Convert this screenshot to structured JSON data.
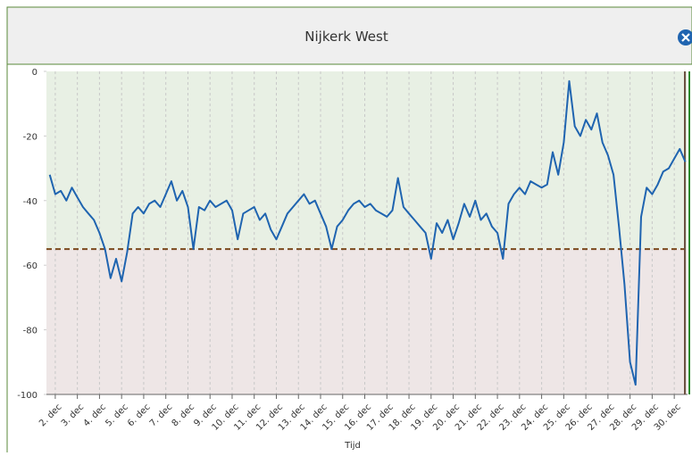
{
  "chart_data": {
    "type": "line",
    "title": "Nijkerk West",
    "x_label": "Tijd",
    "x": [
      1.75,
      2,
      2.25,
      2.5,
      2.75,
      3,
      3.25,
      3.5,
      3.75,
      4,
      4.25,
      4.5,
      4.75,
      5,
      5.25,
      5.5,
      5.75,
      6,
      6.25,
      6.5,
      6.75,
      7,
      7.25,
      7.5,
      7.75,
      8,
      8.25,
      8.5,
      8.75,
      9,
      9.25,
      9.5,
      9.75,
      10,
      10.25,
      10.5,
      10.75,
      11,
      11.25,
      11.5,
      11.75,
      12,
      12.25,
      12.5,
      12.75,
      13,
      13.25,
      13.5,
      13.75,
      14,
      14.25,
      14.5,
      14.75,
      15,
      15.25,
      15.5,
      15.75,
      16,
      16.25,
      16.5,
      16.75,
      17,
      17.25,
      17.5,
      17.75,
      18,
      18.25,
      18.5,
      18.75,
      19,
      19.25,
      19.5,
      19.75,
      20,
      20.25,
      20.5,
      20.75,
      21,
      21.25,
      21.5,
      21.75,
      22,
      22.25,
      22.5,
      22.75,
      23,
      23.25,
      23.5,
      23.75,
      24,
      24.25,
      24.5,
      24.75,
      25,
      25.25,
      25.5,
      25.75,
      26,
      26.25,
      26.5,
      26.75,
      27,
      27.25,
      27.5,
      27.75,
      28,
      28.25,
      28.5,
      28.75,
      29,
      29.25,
      29.5,
      29.75,
      30,
      30.25,
      30.5
    ],
    "series": [
      {
        "name": "Nijkerk West",
        "color": "#1f64b0",
        "values": [
          -32,
          -38,
          -37,
          -40,
          -36,
          -39,
          -42,
          -44,
          -46,
          -50,
          -55,
          -64,
          -58,
          -65,
          -56,
          -44,
          -42,
          -44,
          -41,
          -40,
          -42,
          -38,
          -34,
          -40,
          -37,
          -42,
          -55,
          -42,
          -43,
          -40,
          -42,
          -41,
          -40,
          -43,
          -52,
          -44,
          -43,
          -42,
          -46,
          -44,
          -49,
          -52,
          -48,
          -44,
          -42,
          -40,
          -38,
          -41,
          -40,
          -44,
          -48,
          -55,
          -48,
          -46,
          -43,
          -41,
          -40,
          -42,
          -41,
          -43,
          -44,
          -45,
          -43,
          -33,
          -42,
          -44,
          -46,
          -48,
          -50,
          -58,
          -47,
          -50,
          -46,
          -52,
          -47,
          -41,
          -45,
          -40,
          -46,
          -44,
          -48,
          -50,
          -58,
          -41,
          -38,
          -36,
          -38,
          -34,
          -35,
          -36,
          -35,
          -25,
          -32,
          -22,
          -3,
          -17,
          -20,
          -15,
          -18,
          -13,
          -22,
          -26,
          -32,
          -48,
          -66,
          -90,
          -97,
          -45,
          -36,
          -38,
          -35,
          -31,
          -30,
          -27,
          -24,
          -28
        ]
      }
    ],
    "xlim": [
      1.6,
      30.6
    ],
    "xticks": [
      {
        "value": 2,
        "label": "2. dec"
      },
      {
        "value": 3,
        "label": "3. dec"
      },
      {
        "value": 4,
        "label": "4. dec"
      },
      {
        "value": 5,
        "label": "5. dec"
      },
      {
        "value": 6,
        "label": "6. dec"
      },
      {
        "value": 7,
        "label": "7. dec"
      },
      {
        "value": 8,
        "label": "8. dec"
      },
      {
        "value": 9,
        "label": "9. dec"
      },
      {
        "value": 10,
        "label": "10. dec"
      },
      {
        "value": 11,
        "label": "11. dec"
      },
      {
        "value": 12,
        "label": "12. dec"
      },
      {
        "value": 13,
        "label": "13. dec"
      },
      {
        "value": 14,
        "label": "14. dec"
      },
      {
        "value": 15,
        "label": "15. dec"
      },
      {
        "value": 16,
        "label": "16. dec"
      },
      {
        "value": 17,
        "label": "17. dec"
      },
      {
        "value": 18,
        "label": "18. dec"
      },
      {
        "value": 19,
        "label": "19. dec"
      },
      {
        "value": 20,
        "label": "20. dec"
      },
      {
        "value": 21,
        "label": "21. dec"
      },
      {
        "value": 22,
        "label": "22. dec"
      },
      {
        "value": 23,
        "label": "23. dec"
      },
      {
        "value": 24,
        "label": "24. dec"
      },
      {
        "value": 25,
        "label": "25. dec"
      },
      {
        "value": 26,
        "label": "26. dec"
      },
      {
        "value": 27,
        "label": "27. dec"
      },
      {
        "value": 28,
        "label": "28. dec"
      },
      {
        "value": 29,
        "label": "29. dec"
      },
      {
        "value": 30,
        "label": "30. dec"
      }
    ],
    "ylim": [
      -100,
      0
    ],
    "yticks": [
      -100,
      -80,
      -60,
      -40,
      -20,
      0
    ],
    "threshold": -55,
    "threshold_color": "#7a4a1e",
    "above_color": "#e8f0e4",
    "below_color": "#eee6e6",
    "grid": true
  }
}
